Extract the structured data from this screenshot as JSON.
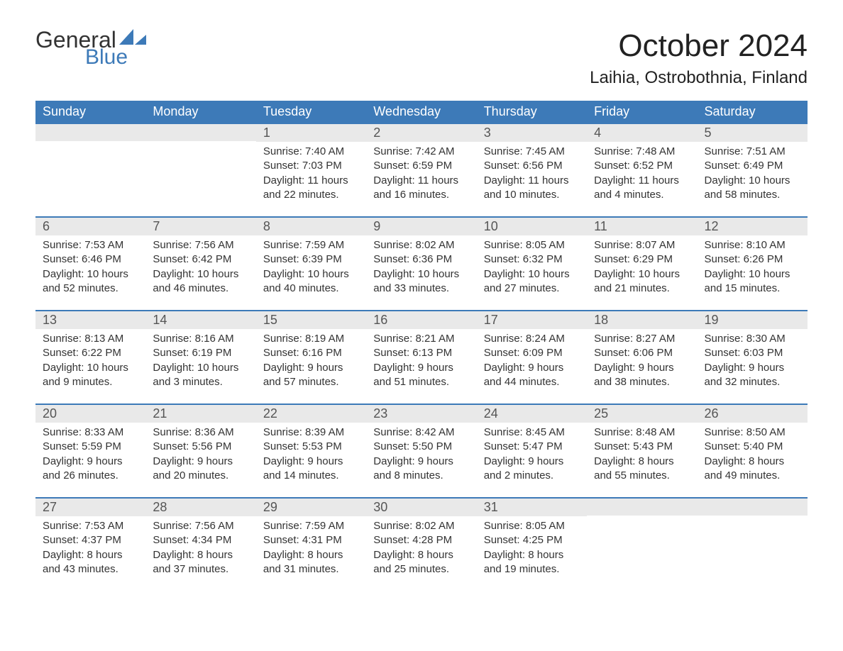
{
  "brand": {
    "word1": "General",
    "word2": "Blue",
    "sail_color": "#3d7ab8"
  },
  "title": "October 2024",
  "location": "Laihia, Ostrobothnia, Finland",
  "colors": {
    "header_bg": "#3d7ab8",
    "header_text": "#ffffff",
    "daynum_bg": "#e9e9e9",
    "row_border": "#3d7ab8",
    "body_text": "#333333"
  },
  "fonts": {
    "title_size": 44,
    "location_size": 24,
    "dayhead_size": 18,
    "body_size": 15
  },
  "dayHeaders": [
    "Sunday",
    "Monday",
    "Tuesday",
    "Wednesday",
    "Thursday",
    "Friday",
    "Saturday"
  ],
  "weeks": [
    [
      null,
      null,
      {
        "n": "1",
        "sr": "Sunrise: 7:40 AM",
        "ss": "Sunset: 7:03 PM",
        "d1": "Daylight: 11 hours",
        "d2": "and 22 minutes."
      },
      {
        "n": "2",
        "sr": "Sunrise: 7:42 AM",
        "ss": "Sunset: 6:59 PM",
        "d1": "Daylight: 11 hours",
        "d2": "and 16 minutes."
      },
      {
        "n": "3",
        "sr": "Sunrise: 7:45 AM",
        "ss": "Sunset: 6:56 PM",
        "d1": "Daylight: 11 hours",
        "d2": "and 10 minutes."
      },
      {
        "n": "4",
        "sr": "Sunrise: 7:48 AM",
        "ss": "Sunset: 6:52 PM",
        "d1": "Daylight: 11 hours",
        "d2": "and 4 minutes."
      },
      {
        "n": "5",
        "sr": "Sunrise: 7:51 AM",
        "ss": "Sunset: 6:49 PM",
        "d1": "Daylight: 10 hours",
        "d2": "and 58 minutes."
      }
    ],
    [
      {
        "n": "6",
        "sr": "Sunrise: 7:53 AM",
        "ss": "Sunset: 6:46 PM",
        "d1": "Daylight: 10 hours",
        "d2": "and 52 minutes."
      },
      {
        "n": "7",
        "sr": "Sunrise: 7:56 AM",
        "ss": "Sunset: 6:42 PM",
        "d1": "Daylight: 10 hours",
        "d2": "and 46 minutes."
      },
      {
        "n": "8",
        "sr": "Sunrise: 7:59 AM",
        "ss": "Sunset: 6:39 PM",
        "d1": "Daylight: 10 hours",
        "d2": "and 40 minutes."
      },
      {
        "n": "9",
        "sr": "Sunrise: 8:02 AM",
        "ss": "Sunset: 6:36 PM",
        "d1": "Daylight: 10 hours",
        "d2": "and 33 minutes."
      },
      {
        "n": "10",
        "sr": "Sunrise: 8:05 AM",
        "ss": "Sunset: 6:32 PM",
        "d1": "Daylight: 10 hours",
        "d2": "and 27 minutes."
      },
      {
        "n": "11",
        "sr": "Sunrise: 8:07 AM",
        "ss": "Sunset: 6:29 PM",
        "d1": "Daylight: 10 hours",
        "d2": "and 21 minutes."
      },
      {
        "n": "12",
        "sr": "Sunrise: 8:10 AM",
        "ss": "Sunset: 6:26 PM",
        "d1": "Daylight: 10 hours",
        "d2": "and 15 minutes."
      }
    ],
    [
      {
        "n": "13",
        "sr": "Sunrise: 8:13 AM",
        "ss": "Sunset: 6:22 PM",
        "d1": "Daylight: 10 hours",
        "d2": "and 9 minutes."
      },
      {
        "n": "14",
        "sr": "Sunrise: 8:16 AM",
        "ss": "Sunset: 6:19 PM",
        "d1": "Daylight: 10 hours",
        "d2": "and 3 minutes."
      },
      {
        "n": "15",
        "sr": "Sunrise: 8:19 AM",
        "ss": "Sunset: 6:16 PM",
        "d1": "Daylight: 9 hours",
        "d2": "and 57 minutes."
      },
      {
        "n": "16",
        "sr": "Sunrise: 8:21 AM",
        "ss": "Sunset: 6:13 PM",
        "d1": "Daylight: 9 hours",
        "d2": "and 51 minutes."
      },
      {
        "n": "17",
        "sr": "Sunrise: 8:24 AM",
        "ss": "Sunset: 6:09 PM",
        "d1": "Daylight: 9 hours",
        "d2": "and 44 minutes."
      },
      {
        "n": "18",
        "sr": "Sunrise: 8:27 AM",
        "ss": "Sunset: 6:06 PM",
        "d1": "Daylight: 9 hours",
        "d2": "and 38 minutes."
      },
      {
        "n": "19",
        "sr": "Sunrise: 8:30 AM",
        "ss": "Sunset: 6:03 PM",
        "d1": "Daylight: 9 hours",
        "d2": "and 32 minutes."
      }
    ],
    [
      {
        "n": "20",
        "sr": "Sunrise: 8:33 AM",
        "ss": "Sunset: 5:59 PM",
        "d1": "Daylight: 9 hours",
        "d2": "and 26 minutes."
      },
      {
        "n": "21",
        "sr": "Sunrise: 8:36 AM",
        "ss": "Sunset: 5:56 PM",
        "d1": "Daylight: 9 hours",
        "d2": "and 20 minutes."
      },
      {
        "n": "22",
        "sr": "Sunrise: 8:39 AM",
        "ss": "Sunset: 5:53 PM",
        "d1": "Daylight: 9 hours",
        "d2": "and 14 minutes."
      },
      {
        "n": "23",
        "sr": "Sunrise: 8:42 AM",
        "ss": "Sunset: 5:50 PM",
        "d1": "Daylight: 9 hours",
        "d2": "and 8 minutes."
      },
      {
        "n": "24",
        "sr": "Sunrise: 8:45 AM",
        "ss": "Sunset: 5:47 PM",
        "d1": "Daylight: 9 hours",
        "d2": "and 2 minutes."
      },
      {
        "n": "25",
        "sr": "Sunrise: 8:48 AM",
        "ss": "Sunset: 5:43 PM",
        "d1": "Daylight: 8 hours",
        "d2": "and 55 minutes."
      },
      {
        "n": "26",
        "sr": "Sunrise: 8:50 AM",
        "ss": "Sunset: 5:40 PM",
        "d1": "Daylight: 8 hours",
        "d2": "and 49 minutes."
      }
    ],
    [
      {
        "n": "27",
        "sr": "Sunrise: 7:53 AM",
        "ss": "Sunset: 4:37 PM",
        "d1": "Daylight: 8 hours",
        "d2": "and 43 minutes."
      },
      {
        "n": "28",
        "sr": "Sunrise: 7:56 AM",
        "ss": "Sunset: 4:34 PM",
        "d1": "Daylight: 8 hours",
        "d2": "and 37 minutes."
      },
      {
        "n": "29",
        "sr": "Sunrise: 7:59 AM",
        "ss": "Sunset: 4:31 PM",
        "d1": "Daylight: 8 hours",
        "d2": "and 31 minutes."
      },
      {
        "n": "30",
        "sr": "Sunrise: 8:02 AM",
        "ss": "Sunset: 4:28 PM",
        "d1": "Daylight: 8 hours",
        "d2": "and 25 minutes."
      },
      {
        "n": "31",
        "sr": "Sunrise: 8:05 AM",
        "ss": "Sunset: 4:25 PM",
        "d1": "Daylight: 8 hours",
        "d2": "and 19 minutes."
      },
      null,
      null
    ]
  ]
}
